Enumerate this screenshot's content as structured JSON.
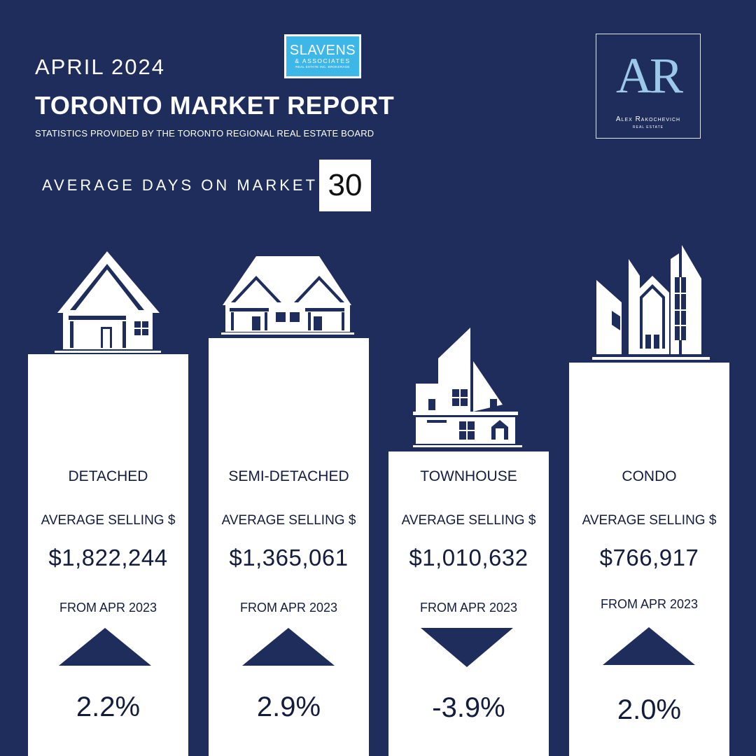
{
  "header": {
    "month": "APRIL 2024",
    "title": "TORONTO MARKET REPORT",
    "subtitle": "STATISTICS PROVIDED BY THE TORONTO REGIONAL REAL ESTATE BOARD",
    "days_on_market_label": "AVERAGE DAYS ON MARKET",
    "days_on_market_value": "30"
  },
  "logos": {
    "brokerage": {
      "line1": "SLAVENS",
      "line2": "& ASSOCIATES",
      "line3": "REAL ESTATE INC. BROKERAGE",
      "color": "#3db7e8"
    },
    "agent": {
      "monogram": "AR",
      "name": "Alex Rakochevich",
      "tagline": "REAL ESTATE"
    }
  },
  "colors": {
    "background": "#1e2d5c",
    "card": "#ffffff",
    "text_dark": "#131c3d"
  },
  "cards": [
    {
      "type": "DETACHED",
      "label": "AVERAGE SELLING $",
      "price": "$1,822,244",
      "from": "FROM APR 2023",
      "direction": "up",
      "change": "2.2%",
      "icon": "detached-house-icon"
    },
    {
      "type": "SEMI-DETACHED",
      "label": "AVERAGE SELLING $",
      "price": "$1,365,061",
      "from": "FROM APR 2023",
      "direction": "up",
      "change": "2.9%",
      "icon": "semi-detached-house-icon"
    },
    {
      "type": "TOWNHOUSE",
      "label": "AVERAGE SELLING $",
      "price": "$1,010,632",
      "from": "FROM APR 2023",
      "direction": "down",
      "change": "-3.9%",
      "icon": "townhouse-icon"
    },
    {
      "type": "CONDO",
      "label": "AVERAGE SELLING $",
      "price": "$766,917",
      "from": "FROM APR 2023",
      "direction": "up",
      "change": "2.0%",
      "icon": "condo-building-icon"
    }
  ]
}
